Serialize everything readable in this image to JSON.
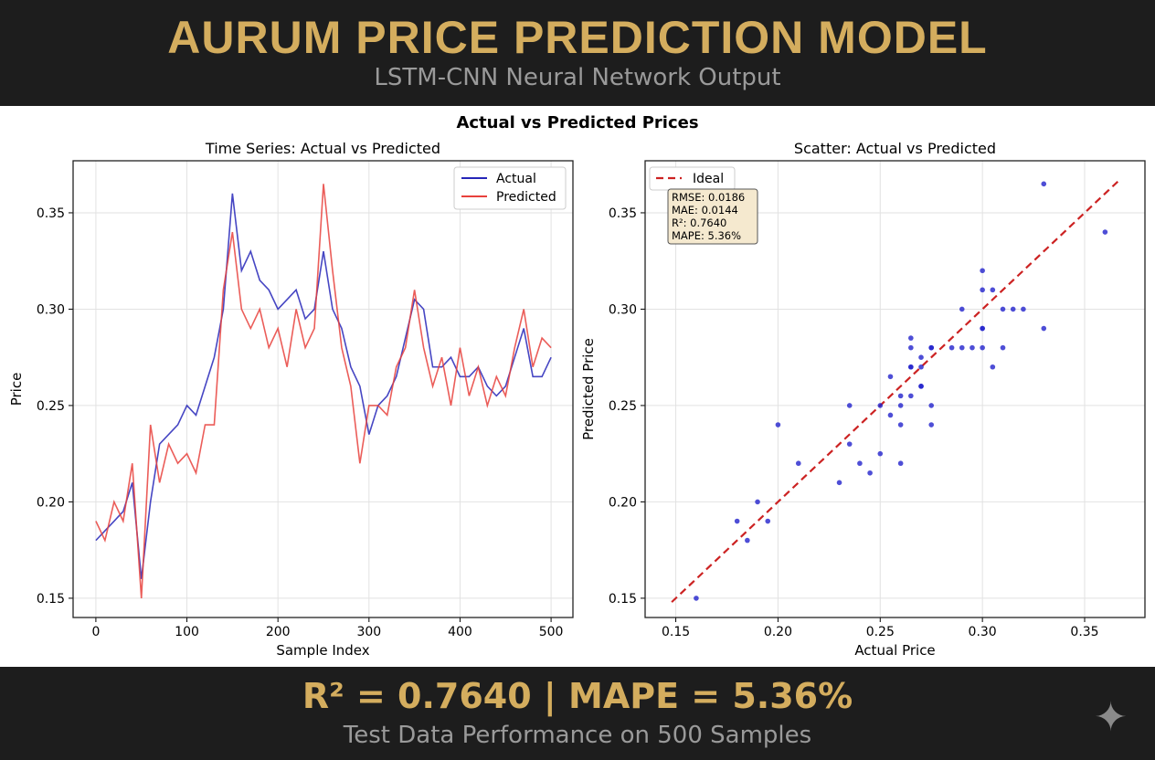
{
  "header": {
    "title": "AURUM PRICE PREDICTION MODEL",
    "subtitle": "LSTM-CNN Neural Network Output"
  },
  "footer": {
    "metric_line": "R² = 0.7640 | MAPE = 5.36%",
    "caption": "Test Data Performance on 500 Samples"
  },
  "chart_data": [
    {
      "type": "line",
      "suptitle": "Actual vs Predicted Prices",
      "title": "Time Series: Actual vs Predicted",
      "xlabel": "Sample Index",
      "ylabel": "Price",
      "xlim": [
        -25,
        524
      ],
      "ylim": [
        0.14,
        0.377
      ],
      "xticks": [
        0,
        100,
        200,
        300,
        400,
        500
      ],
      "yticks": [
        0.15,
        0.2,
        0.25,
        0.3,
        0.35
      ],
      "ytick_labels": [
        "0.15",
        "0.20",
        "0.25",
        "0.30",
        "0.35"
      ],
      "grid": true,
      "legend": "top-right",
      "x": [
        0,
        10,
        20,
        30,
        40,
        50,
        60,
        70,
        80,
        90,
        100,
        110,
        120,
        130,
        140,
        150,
        160,
        170,
        180,
        190,
        200,
        210,
        220,
        230,
        240,
        250,
        260,
        270,
        280,
        290,
        300,
        310,
        320,
        330,
        340,
        350,
        360,
        370,
        380,
        390,
        400,
        410,
        420,
        430,
        440,
        450,
        460,
        470,
        480,
        490,
        500
      ],
      "series": [
        {
          "name": "Actual",
          "color": "#2626b8",
          "values": [
            0.18,
            0.185,
            0.19,
            0.195,
            0.21,
            0.16,
            0.2,
            0.23,
            0.235,
            0.24,
            0.25,
            0.245,
            0.26,
            0.275,
            0.3,
            0.36,
            0.32,
            0.33,
            0.315,
            0.31,
            0.3,
            0.305,
            0.31,
            0.295,
            0.3,
            0.33,
            0.3,
            0.29,
            0.27,
            0.26,
            0.235,
            0.25,
            0.255,
            0.265,
            0.285,
            0.305,
            0.3,
            0.27,
            0.27,
            0.275,
            0.265,
            0.265,
            0.27,
            0.26,
            0.255,
            0.26,
            0.275,
            0.29,
            0.265,
            0.265,
            0.275
          ]
        },
        {
          "name": "Predicted",
          "color": "#e8413c",
          "values": [
            0.19,
            0.18,
            0.2,
            0.19,
            0.22,
            0.15,
            0.24,
            0.21,
            0.23,
            0.22,
            0.225,
            0.215,
            0.24,
            0.24,
            0.31,
            0.34,
            0.3,
            0.29,
            0.3,
            0.28,
            0.29,
            0.27,
            0.3,
            0.28,
            0.29,
            0.365,
            0.32,
            0.28,
            0.26,
            0.22,
            0.25,
            0.25,
            0.245,
            0.27,
            0.28,
            0.31,
            0.28,
            0.26,
            0.275,
            0.25,
            0.28,
            0.255,
            0.27,
            0.25,
            0.265,
            0.255,
            0.28,
            0.3,
            0.27,
            0.285,
            0.28
          ]
        }
      ]
    },
    {
      "type": "scatter",
      "title": "Scatter: Actual vs Predicted",
      "xlabel": "Actual Price",
      "ylabel": "Predicted Price",
      "xlim": [
        0.135,
        0.3795
      ],
      "ylim": [
        0.14,
        0.377
      ],
      "xticks": [
        0.15,
        0.2,
        0.25,
        0.3,
        0.35
      ],
      "xtick_labels": [
        "0.15",
        "0.20",
        "0.25",
        "0.30",
        "0.35"
      ],
      "yticks": [
        0.15,
        0.2,
        0.25,
        0.3,
        0.35
      ],
      "ytick_labels": [
        "0.15",
        "0.20",
        "0.25",
        "0.30",
        "0.35"
      ],
      "grid": true,
      "legend": "top-left",
      "ideal_line": {
        "name": "Ideal",
        "color": "#cc2222",
        "from": 0.148,
        "to": 0.367
      },
      "point_color": "#2222cc",
      "points_source": "pairs of Actual and Predicted series",
      "stats": [
        "RMSE: 0.0186",
        "MAE: 0.0144",
        "R²: 0.7640",
        "MAPE: 5.36%"
      ]
    }
  ]
}
